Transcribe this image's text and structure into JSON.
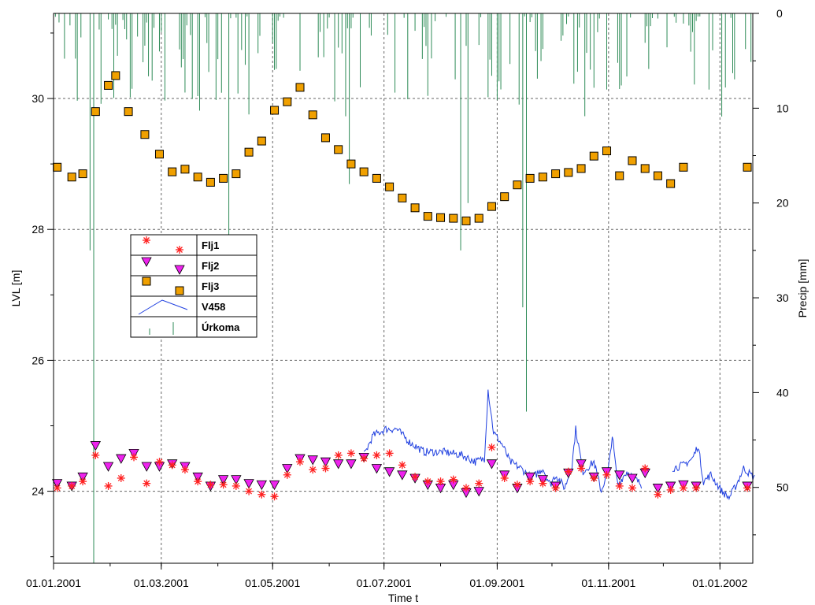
{
  "chart_data": {
    "type": "scatter",
    "xlabel": "Time t",
    "ylabel": "LVL [m]",
    "y2label": "Precip [mm]",
    "x_range": [
      "2001-01-01",
      "2002-01-19"
    ],
    "ylim": [
      22.9,
      31.3
    ],
    "y2lim": [
      0,
      58
    ],
    "y2_inverted": true,
    "grid": true,
    "legend_position": "left",
    "x_ticks": [
      {
        "date": "2001-01-01",
        "label": "01.01.2001"
      },
      {
        "date": "2001-03-01",
        "label": "01.03.2001"
      },
      {
        "date": "2001-05-01",
        "label": "01.05.2001"
      },
      {
        "date": "2001-07-01",
        "label": "01.07.2001"
      },
      {
        "date": "2001-09-01",
        "label": "01.09.2001"
      },
      {
        "date": "2001-11-01",
        "label": "01.11.2001"
      },
      {
        "date": "2002-01-01",
        "label": "01.01.2002"
      }
    ],
    "y_ticks": [
      24,
      26,
      28,
      30
    ],
    "y2_ticks": [
      0,
      10,
      20,
      30,
      40,
      50
    ],
    "series": [
      {
        "name": "Flj1",
        "marker": "asterisk",
        "color": "#ff2020",
        "x": [
          "2001-01-03",
          "2001-01-11",
          "2001-01-17",
          "2001-01-24",
          "2001-01-31",
          "2001-02-07",
          "2001-02-14",
          "2001-02-21",
          "2001-02-28",
          "2001-03-07",
          "2001-03-14",
          "2001-03-21",
          "2001-03-28",
          "2001-04-04",
          "2001-04-11",
          "2001-04-18",
          "2001-04-25",
          "2001-05-02",
          "2001-05-09",
          "2001-05-16",
          "2001-05-23",
          "2001-05-30",
          "2001-06-06",
          "2001-06-13",
          "2001-06-20",
          "2001-06-27",
          "2001-07-04",
          "2001-07-11",
          "2001-07-18",
          "2001-07-25",
          "2001-08-01",
          "2001-08-08",
          "2001-08-15",
          "2001-08-22",
          "2001-08-29",
          "2001-09-05",
          "2001-09-12",
          "2001-09-19",
          "2001-09-26",
          "2001-10-03",
          "2001-10-10",
          "2001-10-17",
          "2001-10-24",
          "2001-10-31",
          "2001-11-07",
          "2001-11-14",
          "2001-11-21",
          "2001-11-28",
          "2001-12-05",
          "2001-12-12",
          "2001-12-19",
          "2002-01-16"
        ],
        "y": [
          24.05,
          24.08,
          24.15,
          24.55,
          24.08,
          24.2,
          24.52,
          24.12,
          24.45,
          24.4,
          24.33,
          24.15,
          24.1,
          24.1,
          24.08,
          24.0,
          23.95,
          23.92,
          24.25,
          24.45,
          24.33,
          24.35,
          24.55,
          24.58,
          24.5,
          24.55,
          24.58,
          24.4,
          24.22,
          24.15,
          24.15,
          24.18,
          24.05,
          24.12,
          24.67,
          24.2,
          24.1,
          24.15,
          24.12,
          24.05,
          24.3,
          24.35,
          24.2,
          24.25,
          24.08,
          24.05,
          24.35,
          23.95,
          24.02,
          24.05,
          24.05,
          24.05
        ]
      },
      {
        "name": "Flj2",
        "marker": "triangle-down",
        "color": "#ee22ee",
        "x": [
          "2001-01-03",
          "2001-01-11",
          "2001-01-17",
          "2001-01-24",
          "2001-01-31",
          "2001-02-07",
          "2001-02-14",
          "2001-02-21",
          "2001-02-28",
          "2001-03-07",
          "2001-03-14",
          "2001-03-21",
          "2001-03-28",
          "2001-04-04",
          "2001-04-11",
          "2001-04-18",
          "2001-04-25",
          "2001-05-02",
          "2001-05-09",
          "2001-05-16",
          "2001-05-23",
          "2001-05-30",
          "2001-06-06",
          "2001-06-13",
          "2001-06-20",
          "2001-06-27",
          "2001-07-04",
          "2001-07-11",
          "2001-07-18",
          "2001-07-25",
          "2001-08-01",
          "2001-08-08",
          "2001-08-15",
          "2001-08-22",
          "2001-08-29",
          "2001-09-05",
          "2001-09-12",
          "2001-09-19",
          "2001-09-26",
          "2001-10-03",
          "2001-10-10",
          "2001-10-17",
          "2001-10-24",
          "2001-10-31",
          "2001-11-07",
          "2001-11-14",
          "2001-11-21",
          "2001-11-28",
          "2001-12-05",
          "2001-12-12",
          "2001-12-19",
          "2002-01-16"
        ],
        "y": [
          24.12,
          24.08,
          24.22,
          24.7,
          24.38,
          24.5,
          24.58,
          24.38,
          24.38,
          24.42,
          24.38,
          24.22,
          24.08,
          24.18,
          24.18,
          24.12,
          24.1,
          24.1,
          24.35,
          24.5,
          24.48,
          24.45,
          24.42,
          24.42,
          24.52,
          24.35,
          24.3,
          24.25,
          24.2,
          24.1,
          24.05,
          24.1,
          23.98,
          24.0,
          24.42,
          24.25,
          24.05,
          24.22,
          24.18,
          24.08,
          24.28,
          24.42,
          24.22,
          24.3,
          24.25,
          24.2,
          24.28,
          24.05,
          24.08,
          24.1,
          24.08,
          24.08
        ]
      },
      {
        "name": "Flj3",
        "marker": "square",
        "color": "#f0a000",
        "x": [
          "2001-01-03",
          "2001-01-11",
          "2001-01-17",
          "2001-01-24",
          "2001-01-31",
          "2001-02-04",
          "2001-02-11",
          "2001-02-20",
          "2001-02-28",
          "2001-03-07",
          "2001-03-14",
          "2001-03-21",
          "2001-03-28",
          "2001-04-04",
          "2001-04-11",
          "2001-04-18",
          "2001-04-25",
          "2001-05-02",
          "2001-05-09",
          "2001-05-16",
          "2001-05-23",
          "2001-05-30",
          "2001-06-06",
          "2001-06-13",
          "2001-06-20",
          "2001-06-27",
          "2001-07-04",
          "2001-07-11",
          "2001-07-18",
          "2001-07-25",
          "2001-08-01",
          "2001-08-08",
          "2001-08-15",
          "2001-08-22",
          "2001-08-29",
          "2001-09-05",
          "2001-09-12",
          "2001-09-19",
          "2001-09-26",
          "2001-10-03",
          "2001-10-10",
          "2001-10-17",
          "2001-10-24",
          "2001-10-31",
          "2001-11-07",
          "2001-11-14",
          "2001-11-21",
          "2001-11-28",
          "2001-12-05",
          "2001-12-12",
          "2002-01-16"
        ],
        "y": [
          28.95,
          28.8,
          28.85,
          29.8,
          30.2,
          30.35,
          29.8,
          29.45,
          29.15,
          28.88,
          28.92,
          28.8,
          28.72,
          28.78,
          28.85,
          29.18,
          29.35,
          29.82,
          29.95,
          30.17,
          29.75,
          29.4,
          29.22,
          29.0,
          28.88,
          28.78,
          28.65,
          28.48,
          28.33,
          28.2,
          28.18,
          28.17,
          28.13,
          28.17,
          28.35,
          28.5,
          28.68,
          28.78,
          28.8,
          28.85,
          28.87,
          28.93,
          29.12,
          29.2,
          28.82,
          29.05,
          28.93,
          28.82,
          28.7,
          28.95,
          28.95
        ]
      },
      {
        "name": "V458",
        "marker": "line",
        "color": "#2040e0"
      },
      {
        "name": "Úrkoma",
        "marker": "bar",
        "color": "#2e8b57",
        "axis": "y2"
      }
    ]
  }
}
